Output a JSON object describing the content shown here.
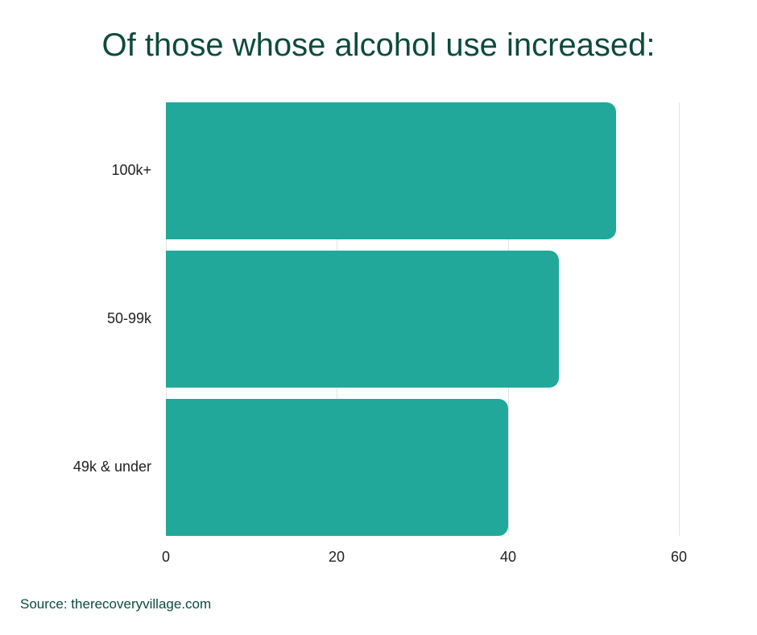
{
  "title": "Of those whose alcohol use increased:",
  "source": "Source: therecoveryvillage.com",
  "colors": {
    "bar": "#21a89a",
    "title": "#0d4b3c",
    "grid": "#e3e3e3"
  },
  "x_ticks": [
    "0",
    "20",
    "40",
    "60"
  ],
  "categories": [
    "100k+",
    "50-99k",
    "49k & under"
  ],
  "chart_data": {
    "type": "bar",
    "orientation": "horizontal",
    "title": "Of those whose alcohol use increased:",
    "categories": [
      "100k+",
      "50-99k",
      "49k & under"
    ],
    "values": [
      52.7,
      46,
      40
    ],
    "xlabel": "",
    "ylabel": "",
    "xlim": [
      0,
      60
    ],
    "x_ticks": [
      0,
      20,
      40,
      60
    ],
    "grid": "vertical",
    "legend": "none",
    "annotations": [
      "Source: therecoveryvillage.com"
    ]
  }
}
